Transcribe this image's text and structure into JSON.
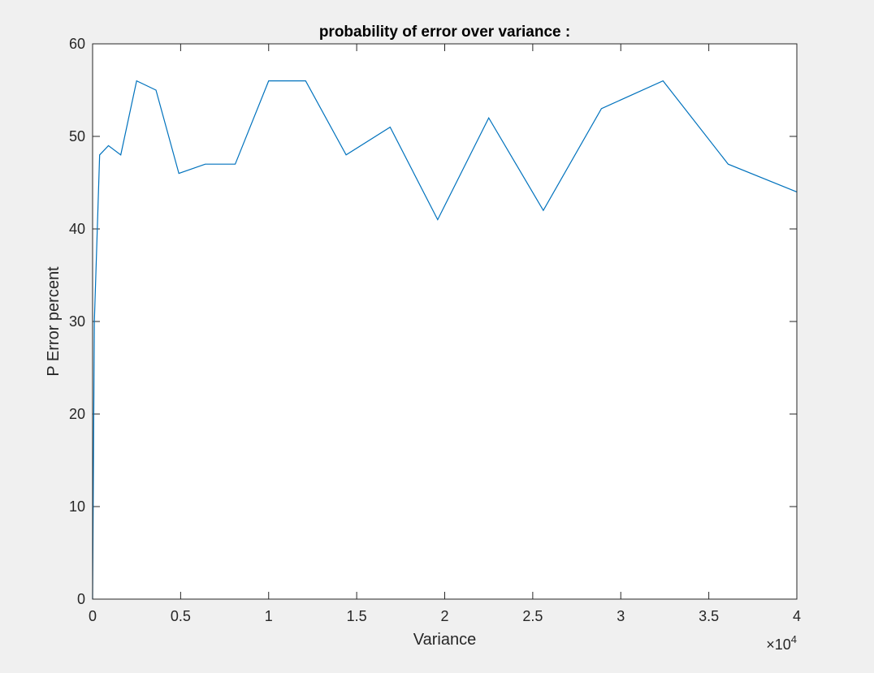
{
  "figure": {
    "background": "#f0f0f0",
    "axes_background": "#ffffff",
    "axes_color": "#262626",
    "line_color": "#0072bd"
  },
  "chart_data": {
    "type": "line",
    "title": "probability of error over variance :",
    "xlabel": "Variance",
    "ylabel": "P Error percent",
    "xlim": [
      0,
      40000
    ],
    "ylim": [
      0,
      60
    ],
    "x_exponent_label": "×10",
    "x_exponent_power": "4",
    "xticks": [
      0,
      5000,
      10000,
      15000,
      20000,
      25000,
      30000,
      35000,
      40000
    ],
    "xtick_labels": [
      "0",
      "0.5",
      "1",
      "1.5",
      "2",
      "2.5",
      "3",
      "3.5",
      "4"
    ],
    "yticks": [
      0,
      10,
      20,
      30,
      40,
      50,
      60
    ],
    "ytick_labels": [
      "0",
      "10",
      "20",
      "30",
      "40",
      "50",
      "60"
    ],
    "grid": false,
    "series": [
      {
        "x": [
          0,
          100,
          400,
          900,
          1600,
          2500,
          3600,
          4900,
          6400,
          8100,
          10000,
          12100,
          14400,
          16900,
          19600,
          22500,
          25600,
          28900,
          32400,
          36100,
          40000
        ],
        "y": [
          0,
          30,
          48,
          49,
          48,
          56,
          55,
          46,
          47,
          47,
          56,
          56,
          48,
          51,
          41,
          52,
          42,
          53,
          56,
          47,
          44
        ]
      }
    ]
  }
}
